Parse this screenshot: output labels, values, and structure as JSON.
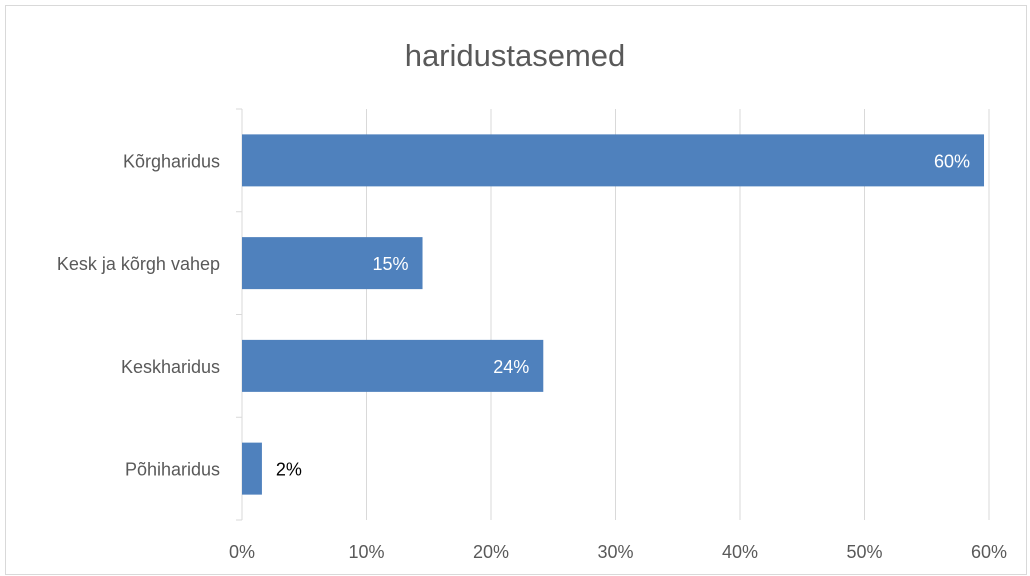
{
  "chart_data": {
    "type": "bar",
    "orientation": "horizontal",
    "title": "haridustasemed",
    "categories": [
      "Kõrgharidus",
      "Kesk ja kõrgh vahep",
      "Keskharidus",
      "Põhiharidus"
    ],
    "values": [
      0.596,
      0.145,
      0.242,
      0.016
    ],
    "data_labels": [
      "60%",
      "15%",
      "24%",
      "2%"
    ],
    "x_ticks": [
      "0%",
      "10%",
      "20%",
      "30%",
      "40%",
      "50%",
      "60%"
    ],
    "xlim": [
      0,
      0.6
    ],
    "xlabel": "",
    "ylabel": "",
    "bar_color": "#4f81bd",
    "grid": true,
    "legend": "none"
  }
}
